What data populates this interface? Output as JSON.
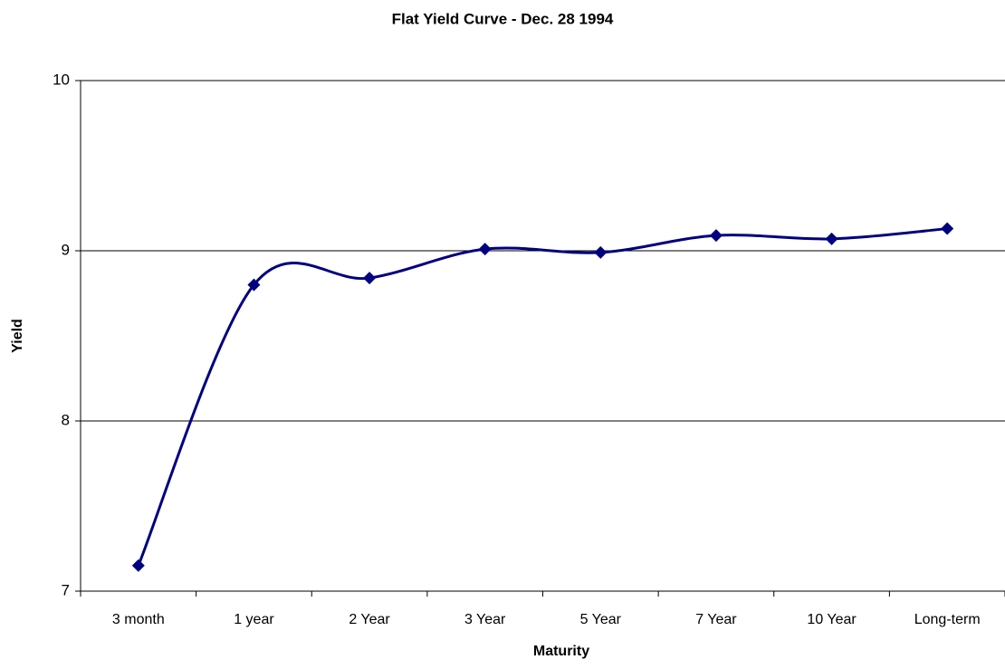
{
  "chart_data": {
    "type": "line",
    "title": "Flat Yield Curve - Dec. 28 1994",
    "x_label": "Maturity",
    "y_label": "Yield",
    "categories": [
      "3 month",
      "1 year",
      "2 Year",
      "3 Year",
      "5 Year",
      "7 Year",
      "10 Year",
      "Long-term"
    ],
    "series": [
      {
        "name": "Yield",
        "color": "#000080",
        "values": [
          7.15,
          8.8,
          8.84,
          9.01,
          8.99,
          9.09,
          9.07,
          9.13
        ]
      }
    ],
    "ylim": [
      7,
      10
    ],
    "yticks": [
      7,
      8,
      9,
      10
    ],
    "grid": true,
    "smooth": true
  }
}
